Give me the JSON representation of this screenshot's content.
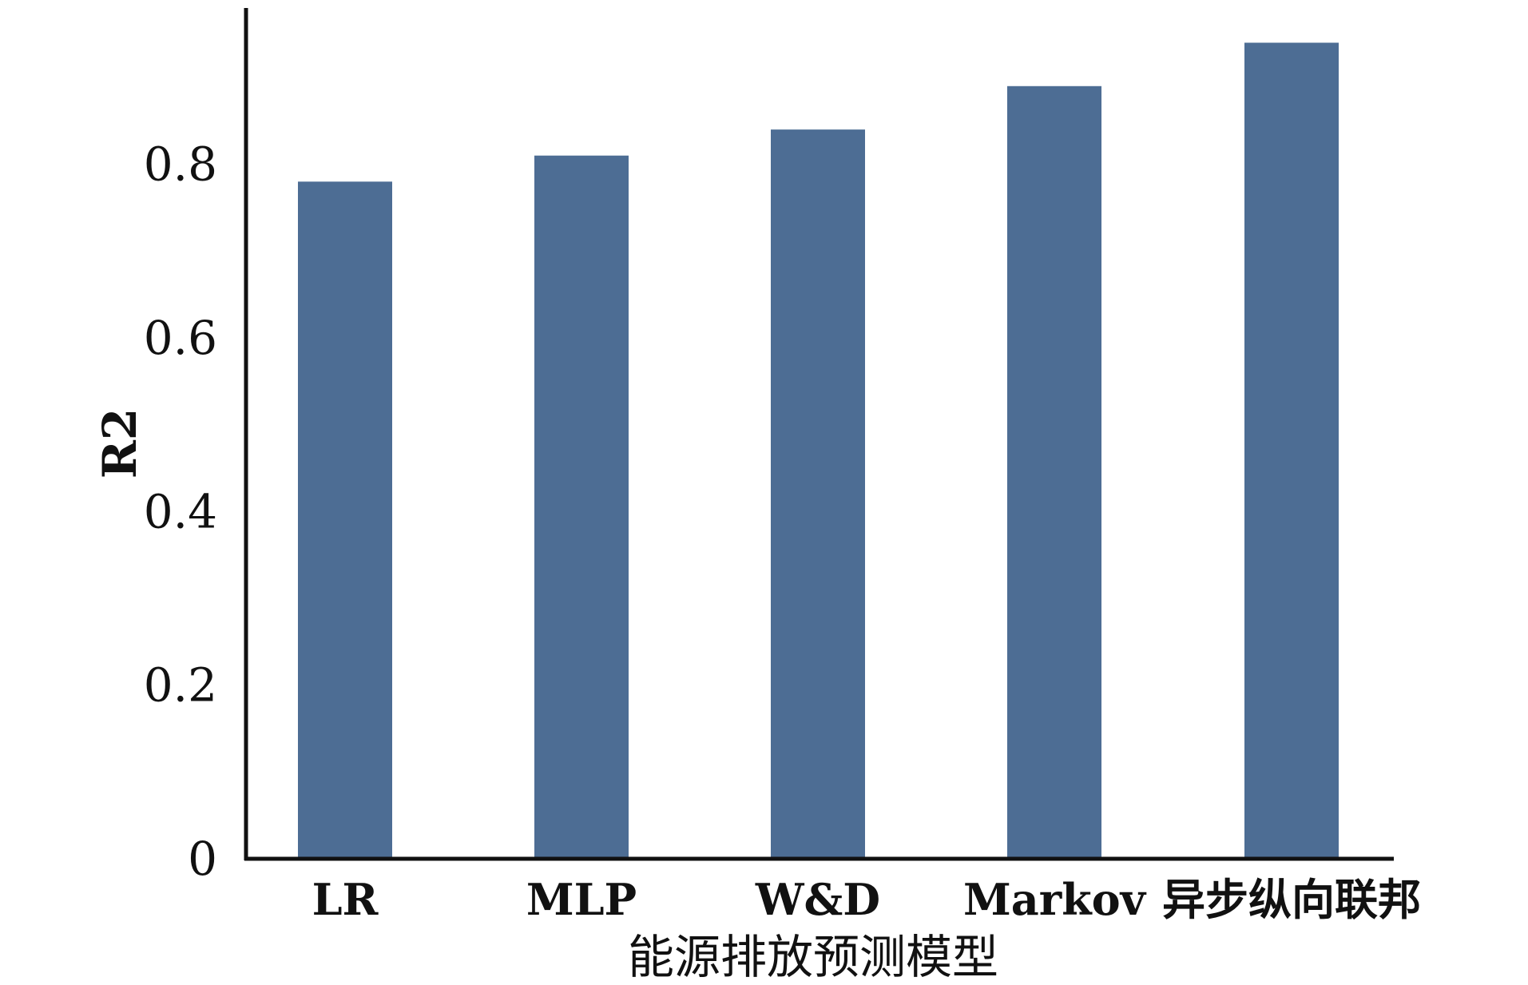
{
  "chart_data": {
    "type": "bar",
    "title": "",
    "xlabel": "能源排放预测模型",
    "ylabel": "R2",
    "categories": [
      "LR",
      "MLP",
      "W&D",
      "Markov",
      "异步纵向联邦"
    ],
    "values": [
      0.78,
      0.81,
      0.84,
      0.89,
      0.94
    ],
    "ylim": [
      0,
      0.98
    ],
    "yticks": [
      0,
      0.2,
      0.4,
      0.6,
      0.8
    ],
    "ytick_labels": [
      "0",
      "0.2",
      "0.4",
      "0.6",
      "0.8"
    ],
    "grid": false,
    "legend": "none",
    "bar_color": "#4d6d94",
    "axis_color": "#111111"
  }
}
